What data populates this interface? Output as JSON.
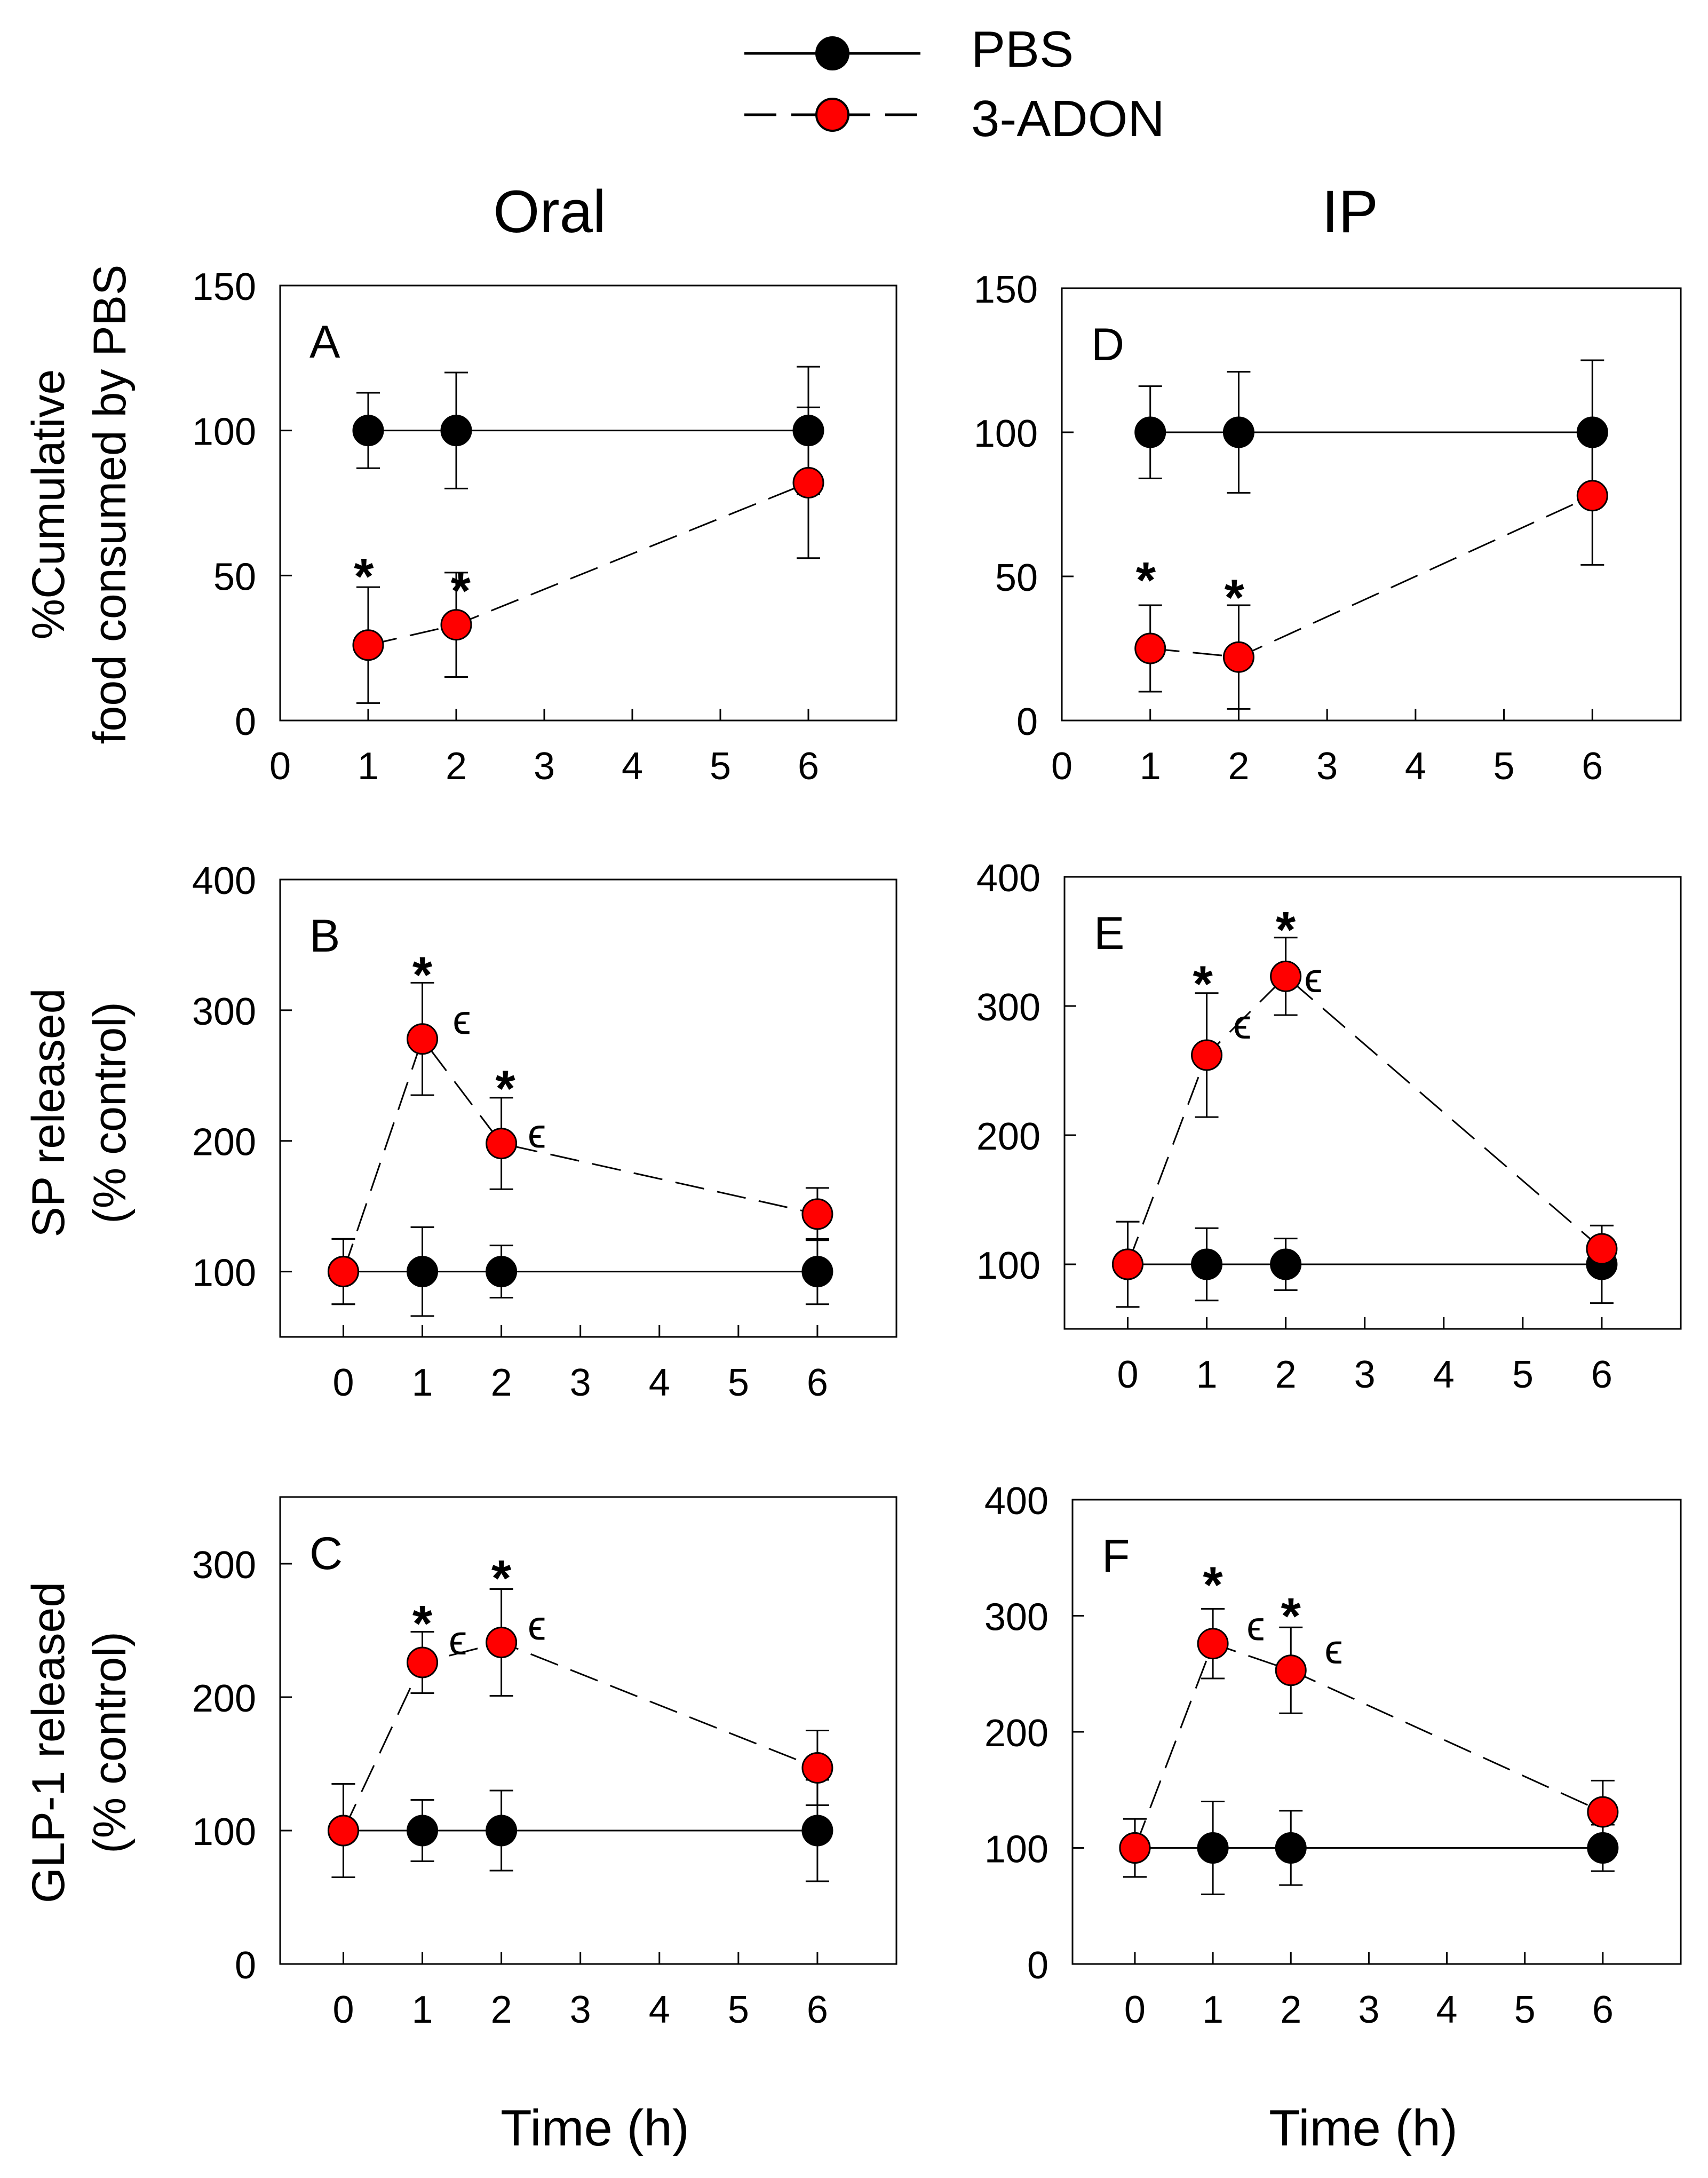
{
  "legend": {
    "entries": [
      {
        "name": "PBS",
        "color": "#000000",
        "line": "solid"
      },
      {
        "name": "3-ADON",
        "color": "#ff0000",
        "line": "dashed"
      }
    ]
  },
  "column_titles": [
    "Oral",
    "IP"
  ],
  "row_ylabels": [
    [
      "%Cumulative",
      "food consumed by PBS"
    ],
    [
      "SP released",
      "(% control)"
    ],
    [
      "GLP-1 released",
      "(% control)"
    ]
  ],
  "xlabels": [
    "Time (h)",
    "Time (h)"
  ],
  "chart_data": [
    {
      "type": "line",
      "panel": "A",
      "xlim": [
        0,
        7
      ],
      "xticks": [
        0,
        1,
        2,
        3,
        4,
        5,
        6
      ],
      "ylim": [
        0,
        150
      ],
      "yticks": [
        0,
        50,
        100,
        150
      ],
      "series": [
        {
          "name": "PBS",
          "x": [
            1,
            2,
            6
          ],
          "values": [
            100,
            100,
            100
          ],
          "errors": [
            13,
            20,
            22
          ]
        },
        {
          "name": "3-ADON",
          "x": [
            1,
            2,
            6
          ],
          "values": [
            26,
            33,
            82
          ],
          "errors": [
            20,
            18,
            26
          ]
        }
      ],
      "annotations": [
        {
          "text": "*",
          "x": 0.95,
          "y": 51
        },
        {
          "text": "*",
          "x": 2.05,
          "y": 46
        }
      ]
    },
    {
      "type": "line",
      "panel": "D",
      "xlim": [
        0,
        7
      ],
      "xticks": [
        0,
        1,
        2,
        3,
        4,
        5,
        6
      ],
      "ylim": [
        0,
        150
      ],
      "yticks": [
        0,
        50,
        100,
        150
      ],
      "series": [
        {
          "name": "PBS",
          "x": [
            1,
            2,
            6
          ],
          "values": [
            100,
            100,
            100
          ],
          "errors": [
            16,
            21,
            25
          ]
        },
        {
          "name": "3-ADON",
          "x": [
            1,
            2,
            6
          ],
          "values": [
            25,
            22,
            78
          ],
          "errors": [
            15,
            18,
            24
          ]
        }
      ],
      "annotations": [
        {
          "text": "*",
          "x": 0.95,
          "y": 50
        },
        {
          "text": "*",
          "x": 1.95,
          "y": 44
        }
      ]
    },
    {
      "type": "line",
      "panel": "B",
      "xlim": [
        -0.8,
        7
      ],
      "xticks": [
        0,
        1,
        2,
        3,
        4,
        5,
        6
      ],
      "ylim": [
        50,
        400
      ],
      "yticks": [
        100,
        200,
        300,
        400
      ],
      "series": [
        {
          "name": "PBS",
          "x": [
            0,
            1,
            2,
            6
          ],
          "values": [
            100,
            100,
            100,
            100
          ],
          "errors": [
            25,
            34,
            20,
            25
          ]
        },
        {
          "name": "3-ADON",
          "x": [
            0,
            1,
            2,
            6
          ],
          "values": [
            100,
            278,
            198,
            144
          ],
          "errors": [
            25,
            43,
            35,
            20
          ]
        }
      ],
      "annotations": [
        {
          "text": "*",
          "x": 1.0,
          "y": 330
        },
        {
          "text": "ϵ",
          "x": 1.5,
          "y": 290
        },
        {
          "text": "*",
          "x": 2.05,
          "y": 243
        },
        {
          "text": "ϵ",
          "x": 2.45,
          "y": 203
        }
      ]
    },
    {
      "type": "line",
      "panel": "E",
      "xlim": [
        -0.8,
        7
      ],
      "xticks": [
        0,
        1,
        2,
        3,
        4,
        5,
        6
      ],
      "ylim": [
        50,
        400
      ],
      "yticks": [
        100,
        200,
        300,
        400
      ],
      "series": [
        {
          "name": "PBS",
          "x": [
            0,
            1,
            2,
            6
          ],
          "values": [
            100,
            100,
            100,
            100
          ],
          "errors": [
            33,
            28,
            20,
            30
          ]
        },
        {
          "name": "3-ADON",
          "x": [
            0,
            1,
            2,
            6
          ],
          "values": [
            100,
            262,
            323,
            112
          ],
          "errors": [
            33,
            48,
            30,
            18
          ]
        }
      ],
      "annotations": [
        {
          "text": "*",
          "x": 0.95,
          "y": 320
        },
        {
          "text": "ϵ",
          "x": 1.45,
          "y": 283
        },
        {
          "text": "*",
          "x": 2.0,
          "y": 362
        },
        {
          "text": "ϵ",
          "x": 2.35,
          "y": 319
        }
      ]
    },
    {
      "type": "line",
      "panel": "C",
      "xlim": [
        -0.8,
        7
      ],
      "xticks": [
        0,
        1,
        2,
        3,
        4,
        5,
        6
      ],
      "ylim": [
        0,
        350
      ],
      "yticks": [
        0,
        100,
        200,
        300
      ],
      "series": [
        {
          "name": "PBS",
          "x": [
            0,
            1,
            2,
            6
          ],
          "values": [
            100,
            100,
            100,
            100
          ],
          "errors": [
            35,
            23,
            30,
            38
          ]
        },
        {
          "name": "3-ADON",
          "x": [
            0,
            1,
            2,
            6
          ],
          "values": [
            100,
            226,
            241,
            147
          ],
          "errors": [
            35,
            23,
            40,
            28
          ]
        }
      ],
      "annotations": [
        {
          "text": "*",
          "x": 1.0,
          "y": 258
        },
        {
          "text": "ϵ",
          "x": 1.45,
          "y": 240
        },
        {
          "text": "*",
          "x": 2.0,
          "y": 292
        },
        {
          "text": "ϵ",
          "x": 2.45,
          "y": 251
        }
      ]
    },
    {
      "type": "line",
      "panel": "F",
      "xlim": [
        -0.8,
        7
      ],
      "xticks": [
        0,
        1,
        2,
        3,
        4,
        5,
        6
      ],
      "ylim": [
        0,
        400
      ],
      "yticks": [
        0,
        100,
        200,
        300,
        400
      ],
      "series": [
        {
          "name": "PBS",
          "x": [
            0,
            1,
            2,
            6
          ],
          "values": [
            100,
            100,
            100,
            100
          ],
          "errors": [
            25,
            40,
            32,
            20
          ]
        },
        {
          "name": "3-ADON",
          "x": [
            0,
            1,
            2,
            6
          ],
          "values": [
            100,
            276,
            253,
            131
          ],
          "errors": [
            25,
            30,
            37,
            27
          ]
        }
      ],
      "annotations": [
        {
          "text": "*",
          "x": 1.0,
          "y": 330
        },
        {
          "text": "ϵ",
          "x": 1.55,
          "y": 288
        },
        {
          "text": "*",
          "x": 2.0,
          "y": 303
        },
        {
          "text": "ϵ",
          "x": 2.55,
          "y": 268
        }
      ]
    }
  ]
}
